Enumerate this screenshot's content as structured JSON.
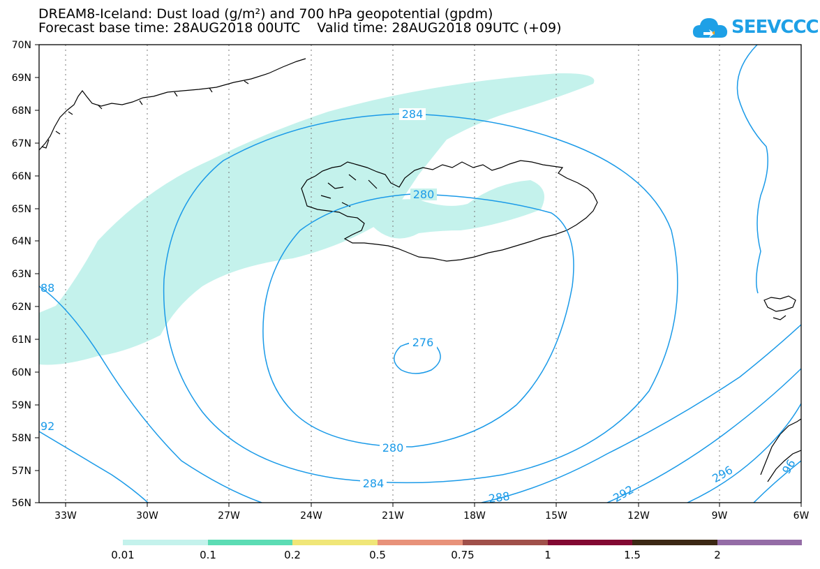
{
  "header": {
    "title_line1": "DREAM8-Iceland: Dust load (g/m²) and 700 hPa geopotential (gpdm)",
    "title_line2": "Forecast base time: 28AUG2018 00UTC    Valid time: 28AUG2018 09UTC (+09)",
    "logo_text": "SEEVCCC"
  },
  "map": {
    "lat_labels": [
      "70N",
      "69N",
      "68N",
      "67N",
      "66N",
      "65N",
      "64N",
      "63N",
      "62N",
      "61N",
      "60N",
      "59N",
      "58N",
      "57N",
      "56N"
    ],
    "lon_labels": [
      "33W",
      "30W",
      "27W",
      "24W",
      "21W",
      "18W",
      "15W",
      "12W",
      "9W",
      "6W"
    ],
    "contour_labels": [
      "284",
      "280",
      "276",
      "280",
      "284",
      "288",
      "292",
      "296",
      "88",
      "92",
      "96"
    ],
    "dust_color": "#c4f2ec",
    "contour_color": "#1a9ae8",
    "coast_color": "#000000"
  },
  "colorbar": {
    "colors": [
      "#c4f2ec",
      "#5cdcb4",
      "#f0e678",
      "#e8927a",
      "#a0504a",
      "#820832",
      "#3c2814",
      "#946ca6"
    ],
    "labels": [
      "0.01",
      "0.1",
      "0.2",
      "0.5",
      "0.75",
      "1",
      "1.5",
      "2"
    ]
  }
}
